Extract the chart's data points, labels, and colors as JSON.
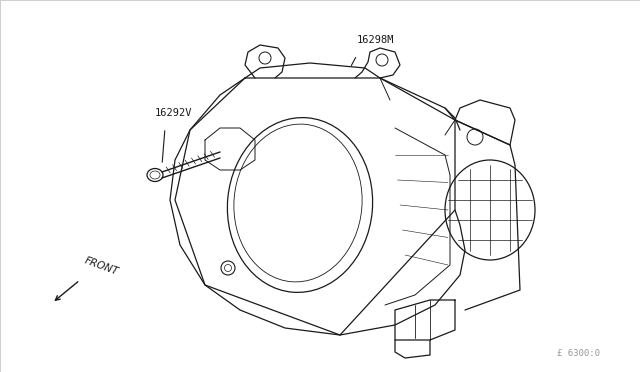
{
  "background_color": "#ffffff",
  "border_color": "#bbbbbb",
  "line_color": "#1a1a1a",
  "label_16298M": "16298M",
  "label_16292V": "16292V",
  "label_front": "FRONT",
  "label_ref": "£ 6300:0",
  "figwidth": 6.4,
  "figheight": 3.72,
  "dpi": 100
}
